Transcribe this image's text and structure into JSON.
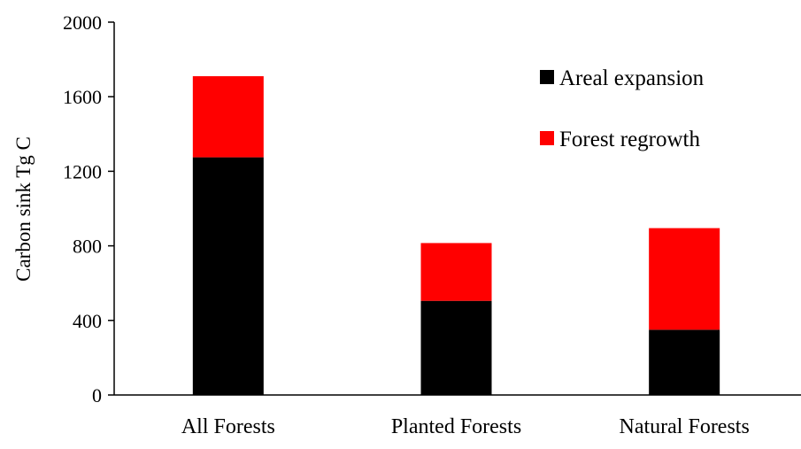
{
  "chart_data": {
    "type": "bar",
    "stacked": true,
    "title": "",
    "xlabel": "",
    "ylabel": "Carbon sink  Tg C",
    "ylim": [
      0,
      2000
    ],
    "yticks": [
      0,
      400,
      800,
      1200,
      1600,
      2000
    ],
    "grid": false,
    "legend_position": "top-right",
    "categories": [
      "All Forests",
      "Planted Forests",
      "Natural Forests"
    ],
    "series": [
      {
        "name": "Areal expansion",
        "color": "#000000",
        "values": [
          1275,
          505,
          350
        ]
      },
      {
        "name": "Forest regrowth",
        "color": "#ff0000",
        "values": [
          435,
          310,
          545
        ]
      }
    ]
  }
}
